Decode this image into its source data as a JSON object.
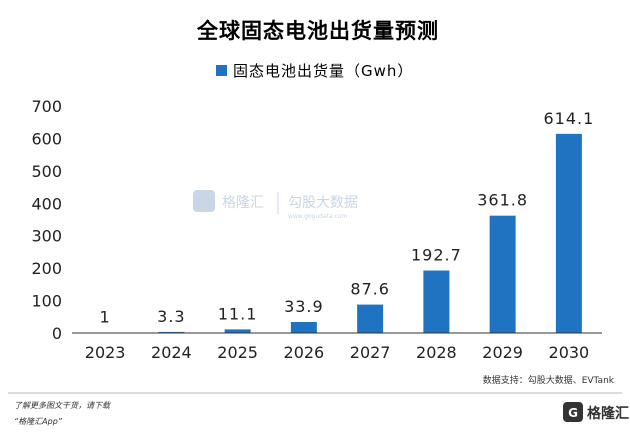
{
  "chart_data": {
    "type": "bar",
    "title": "全球固态电池出货量预测",
    "legend": {
      "label": "固态电池出货量（Gwh）",
      "placement": "top"
    },
    "categories": [
      "2023",
      "2024",
      "2025",
      "2026",
      "2027",
      "2028",
      "2029",
      "2030"
    ],
    "series": [
      {
        "name": "固态电池出货量（Gwh）",
        "values": [
          1,
          3.3,
          11.1,
          33.9,
          87.6,
          192.7,
          361.8,
          614.1
        ],
        "labels": [
          "1",
          "3.3",
          "11.1",
          "33.9",
          "87.6",
          "192.7",
          "361.8",
          "614.1"
        ],
        "color": "#1f73c1"
      }
    ],
    "ylim": [
      0,
      700
    ],
    "yticks": [
      0,
      100,
      200,
      300,
      400,
      500,
      600,
      700
    ],
    "grid": false,
    "xlabel": "",
    "ylabel": ""
  },
  "source_note": "数据支持：勾股大数据、EVTank",
  "footer": {
    "line1": "了解更多图文干货，请下载",
    "line2": "“格隆汇App”",
    "logo_text": "格隆汇"
  },
  "watermark": {
    "brand": "格隆汇",
    "partner": "勾股大数据",
    "url": "www.gogudata.com"
  },
  "colors": {
    "bar": "#1f73c1",
    "axis": "#333333",
    "divider": "#9aa3ad"
  }
}
